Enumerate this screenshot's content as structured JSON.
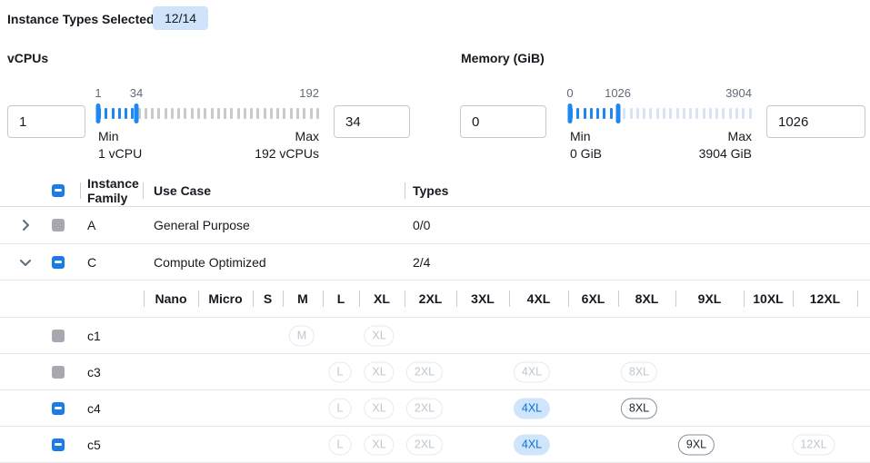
{
  "colors": {
    "accent_blue": "#1a7ce8",
    "slider_blue": "#1e88f2",
    "badge_bg": "#cfe4fa",
    "selected_pill_bg": "#cfe5fc",
    "selected_pill_text": "#0c6fd6",
    "disabled_grey": "#a8a8b0"
  },
  "header": {
    "label": "Instance Types Selected:",
    "badge": "12/14"
  },
  "filters": [
    {
      "title": "vCPUs",
      "from_value": "1",
      "to_value": "34",
      "scale_low": "1",
      "scale_mid": "34",
      "scale_high": "192",
      "min_label": "Min",
      "min_sub": "1 vCPU",
      "max_label": "Max",
      "max_sub": "192 vCPUs",
      "range_min": 1,
      "range_max": 192,
      "sel_min": 1,
      "sel_max": 34,
      "tick_count": 34
    },
    {
      "title": "Memory (GiB)",
      "from_value": "0",
      "to_value": "1026",
      "scale_low": "0",
      "scale_mid": "1026",
      "scale_high": "3904",
      "min_label": "Min",
      "min_sub": "0 GiB",
      "max_label": "Max",
      "max_sub": "3904 GiB",
      "range_min": 0,
      "range_max": 3904,
      "sel_min": 0,
      "sel_max": 1026,
      "tick_count": 28
    }
  ],
  "table": {
    "header_checkbox": "indeterminate",
    "headers": {
      "family": "Instance Family",
      "use_case": "Use Case",
      "types": "Types"
    },
    "family_groups": [
      {
        "family": "A",
        "use_case": "General Purpose",
        "types": "0/0",
        "expanded": false,
        "checkbox": "disabled"
      },
      {
        "family": "C",
        "use_case": "Compute Optimized",
        "types": "2/4",
        "expanded": true,
        "checkbox": "indeterminate"
      }
    ],
    "size_columns": [
      "Nano",
      "Micro",
      "S",
      "M",
      "L",
      "XL",
      "2XL",
      "3XL",
      "4XL",
      "6XL",
      "8XL",
      "9XL",
      "10XL",
      "12XL"
    ],
    "instance_rows": [
      {
        "name": "c1",
        "checkbox": "disabled",
        "pills": [
          {
            "size": "M",
            "state": "disabled"
          },
          {
            "size": "XL",
            "state": "disabled"
          }
        ]
      },
      {
        "name": "c3",
        "checkbox": "disabled",
        "pills": [
          {
            "size": "L",
            "state": "disabled"
          },
          {
            "size": "XL",
            "state": "disabled"
          },
          {
            "size": "2XL",
            "state": "disabled"
          },
          {
            "size": "4XL",
            "state": "disabled"
          },
          {
            "size": "8XL",
            "state": "disabled"
          }
        ]
      },
      {
        "name": "c4",
        "checkbox": "indeterminate",
        "pills": [
          {
            "size": "L",
            "state": "disabled"
          },
          {
            "size": "XL",
            "state": "disabled"
          },
          {
            "size": "2XL",
            "state": "disabled"
          },
          {
            "size": "4XL",
            "state": "selected"
          },
          {
            "size": "8XL",
            "state": "enabled"
          }
        ]
      },
      {
        "name": "c5",
        "checkbox": "indeterminate",
        "pills": [
          {
            "size": "L",
            "state": "disabled"
          },
          {
            "size": "XL",
            "state": "disabled"
          },
          {
            "size": "2XL",
            "state": "disabled"
          },
          {
            "size": "4XL",
            "state": "selected"
          },
          {
            "size": "9XL",
            "state": "enabled"
          },
          {
            "size": "12XL",
            "state": "disabled"
          }
        ]
      }
    ]
  }
}
